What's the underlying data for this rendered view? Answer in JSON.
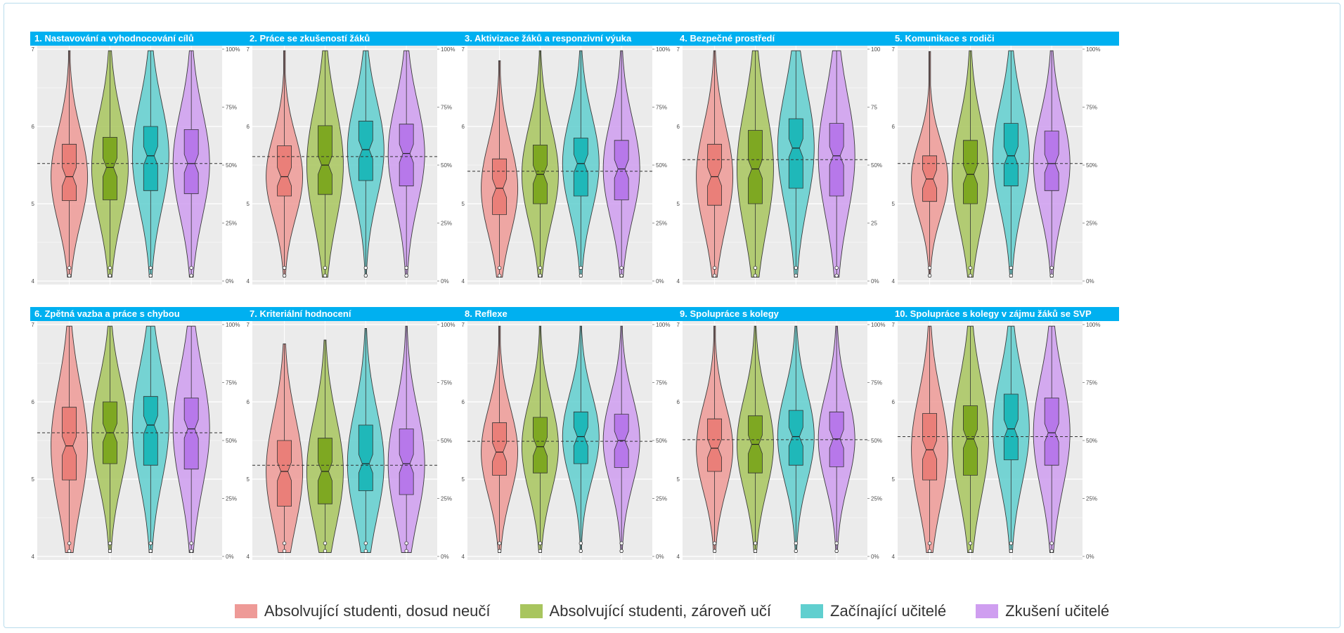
{
  "legend": {
    "items": [
      {
        "label": "Absolvující studenti, dosud neučí",
        "color": "#ee9a97"
      },
      {
        "label": "Absolvující studenti, zároveň učí",
        "color": "#a8c55e"
      },
      {
        "label": "Začínající učitelé",
        "color": "#60cfcf"
      },
      {
        "label": "Zkušení učitelé",
        "color": "#cf9ef0"
      }
    ]
  },
  "chart_data": [
    {
      "type": "violin",
      "title": "1. Nastavování a vyhodnocování cílů",
      "yticks": [
        "4",
        "5",
        "6",
        "7"
      ],
      "ylim": [
        4,
        7
      ],
      "y2ticks": [
        "0%",
        "25%",
        "50%",
        "75%",
        "100%"
      ],
      "reference": 5.52,
      "groups": [
        {
          "name": "Absolvující studenti, dosud neučí",
          "q1": 5.04,
          "median": 5.35,
          "q3": 5.77
        },
        {
          "name": "Absolvující studenti, zároveň učí",
          "q1": 5.05,
          "median": 5.47,
          "q3": 5.86
        },
        {
          "name": "Začínající učitelé",
          "q1": 5.17,
          "median": 5.62,
          "q3": 6.0
        },
        {
          "name": "Zkušení učitelé",
          "q1": 5.13,
          "median": 5.52,
          "q3": 5.96
        }
      ]
    },
    {
      "type": "violin",
      "title": "2. Práce se zkušeností žáků",
      "yticks": [
        "4",
        "5",
        "6",
        "7"
      ],
      "ylim": [
        4,
        7
      ],
      "y2ticks": [
        "0%",
        "25%",
        "50%",
        "75%",
        "100%"
      ],
      "reference": 5.61,
      "groups": [
        {
          "name": "Absolvující studenti, dosud neučí",
          "q1": 5.1,
          "median": 5.35,
          "q3": 5.75
        },
        {
          "name": "Absolvující studenti, zároveň učí",
          "q1": 5.12,
          "median": 5.5,
          "q3": 6.01
        },
        {
          "name": "Začínající učitelé",
          "q1": 5.3,
          "median": 5.7,
          "q3": 6.07
        },
        {
          "name": "Zkušení učitelé",
          "q1": 5.23,
          "median": 5.65,
          "q3": 6.03
        }
      ]
    },
    {
      "type": "violin",
      "title": "3. Aktivizace žáků a responzivní výuka",
      "yticks": [
        "4",
        "5",
        "6",
        "7"
      ],
      "ylim": [
        4,
        7
      ],
      "y2ticks": [
        "0%",
        "25%",
        "50%",
        "75%",
        "100%"
      ],
      "reference": 5.42,
      "groups": [
        {
          "name": "Absolvující studenti, dosud neučí",
          "q1": 4.86,
          "median": 5.2,
          "q3": 5.58
        },
        {
          "name": "Absolvující studenti, zároveň učí",
          "q1": 5.0,
          "median": 5.38,
          "q3": 5.76
        },
        {
          "name": "Začínající učitelé",
          "q1": 5.1,
          "median": 5.52,
          "q3": 5.85
        },
        {
          "name": "Zkušení učitelé",
          "q1": 5.05,
          "median": 5.45,
          "q3": 5.82
        }
      ]
    },
    {
      "type": "violin",
      "title": "4. Bezpečné prostředí",
      "yticks": [
        "4",
        "5",
        "6",
        "7"
      ],
      "ylim": [
        4,
        7
      ],
      "y2ticks": [
        "0%",
        "25",
        "50%",
        "75",
        "100"
      ],
      "reference": 5.57,
      "groups": [
        {
          "name": "Absolvující studenti, dosud neučí",
          "q1": 4.98,
          "median": 5.35,
          "q3": 5.77
        },
        {
          "name": "Absolvující studenti, zároveň učí",
          "q1": 5.0,
          "median": 5.45,
          "q3": 5.95
        },
        {
          "name": "Začínající učitelé",
          "q1": 5.2,
          "median": 5.72,
          "q3": 6.1
        },
        {
          "name": "Zkušení učitelé",
          "q1": 5.1,
          "median": 5.62,
          "q3": 6.04
        }
      ]
    },
    {
      "type": "violin",
      "title": "5. Komunikace s rodiči",
      "yticks": [
        "4",
        "5",
        "6",
        "7"
      ],
      "ylim": [
        4,
        7
      ],
      "y2ticks": [
        "0%",
        "25%",
        "50%",
        "75%",
        "100%"
      ],
      "reference": 5.52,
      "groups": [
        {
          "name": "Absolvující studenti, dosud neučí",
          "q1": 5.03,
          "median": 5.32,
          "q3": 5.62
        },
        {
          "name": "Absolvující studenti, zároveň učí",
          "q1": 5.0,
          "median": 5.38,
          "q3": 5.82
        },
        {
          "name": "Začínající učitelé",
          "q1": 5.23,
          "median": 5.62,
          "q3": 6.04
        },
        {
          "name": "Zkušení učitelé",
          "q1": 5.17,
          "median": 5.52,
          "q3": 5.94
        }
      ]
    },
    {
      "type": "violin",
      "title": "6. Zpětná vazba a práce s chybou",
      "yticks": [
        "4",
        "5",
        "6",
        "7"
      ],
      "ylim": [
        4,
        7
      ],
      "y2ticks": [
        "0%",
        "25%",
        "50%",
        "75%",
        "100%"
      ],
      "reference": 5.6,
      "groups": [
        {
          "name": "Absolvující studenti, dosud neučí",
          "q1": 4.99,
          "median": 5.43,
          "q3": 5.93
        },
        {
          "name": "Absolvující studenti, zároveň učí",
          "q1": 5.2,
          "median": 5.6,
          "q3": 6.0
        },
        {
          "name": "Začínající učitelé",
          "q1": 5.18,
          "median": 5.7,
          "q3": 6.07
        },
        {
          "name": "Zkušení učitelé",
          "q1": 5.13,
          "median": 5.65,
          "q3": 6.05
        }
      ]
    },
    {
      "type": "violin",
      "title": "7. Kriteriální hodnocení",
      "yticks": [
        "4",
        "5",
        "6",
        "7"
      ],
      "ylim": [
        4,
        7
      ],
      "y2ticks": [
        "0%",
        "25%",
        "50%",
        "75%",
        "100%"
      ],
      "reference": 5.18,
      "groups": [
        {
          "name": "Absolvující studenti, dosud neučí",
          "q1": 4.65,
          "median": 5.1,
          "q3": 5.5
        },
        {
          "name": "Absolvující studenti, zároveň učí",
          "q1": 4.68,
          "median": 5.1,
          "q3": 5.53
        },
        {
          "name": "Začínající učitelé",
          "q1": 4.85,
          "median": 5.2,
          "q3": 5.7
        },
        {
          "name": "Zkušení učitelé",
          "q1": 4.8,
          "median": 5.2,
          "q3": 5.65
        }
      ]
    },
    {
      "type": "violin",
      "title": "8. Reflexe",
      "yticks": [
        "4",
        "5",
        "6",
        "7"
      ],
      "ylim": [
        4,
        7
      ],
      "y2ticks": [
        "0%",
        "25%",
        "50%",
        "75%",
        "100%"
      ],
      "reference": 5.49,
      "groups": [
        {
          "name": "Absolvující studenti, dosud neučí",
          "q1": 5.05,
          "median": 5.35,
          "q3": 5.73
        },
        {
          "name": "Absolvující studenti, zároveň učí",
          "q1": 5.08,
          "median": 5.42,
          "q3": 5.8
        },
        {
          "name": "Začínající učitelé",
          "q1": 5.2,
          "median": 5.55,
          "q3": 5.87
        },
        {
          "name": "Zkušení učitelé",
          "q1": 5.15,
          "median": 5.5,
          "q3": 5.84
        }
      ]
    },
    {
      "type": "violin",
      "title": "9. Spolupráce s kolegy",
      "yticks": [
        "4",
        "5",
        "6",
        "7"
      ],
      "ylim": [
        4,
        7
      ],
      "y2ticks": [
        "0%",
        "25%",
        "50%",
        "75%",
        "100%"
      ],
      "reference": 5.51,
      "groups": [
        {
          "name": "Absolvující studenti, dosud neučí",
          "q1": 5.1,
          "median": 5.4,
          "q3": 5.78
        },
        {
          "name": "Absolvující studenti, zároveň učí",
          "q1": 5.08,
          "median": 5.45,
          "q3": 5.82
        },
        {
          "name": "Začínající učitelé",
          "q1": 5.18,
          "median": 5.55,
          "q3": 5.89
        },
        {
          "name": "Zkušení učitelé",
          "q1": 5.16,
          "median": 5.52,
          "q3": 5.87
        }
      ]
    },
    {
      "type": "violin",
      "title": "10. Spolupráce s kolegy v zájmu žáků se SVP",
      "yticks": [
        "4",
        "5",
        "6",
        "7"
      ],
      "ylim": [
        4,
        7
      ],
      "y2ticks": [
        "0%",
        "25%",
        "50%",
        "75%",
        "100%"
      ],
      "reference": 5.55,
      "groups": [
        {
          "name": "Absolvující studenti, dosud neučí",
          "q1": 4.99,
          "median": 5.38,
          "q3": 5.85
        },
        {
          "name": "Absolvující studenti, zároveň učí",
          "q1": 5.05,
          "median": 5.52,
          "q3": 5.95
        },
        {
          "name": "Začínající učitelé",
          "q1": 5.25,
          "median": 5.65,
          "q3": 6.1
        },
        {
          "name": "Zkušení učitelé",
          "q1": 5.18,
          "median": 5.6,
          "q3": 6.05
        }
      ]
    }
  ]
}
